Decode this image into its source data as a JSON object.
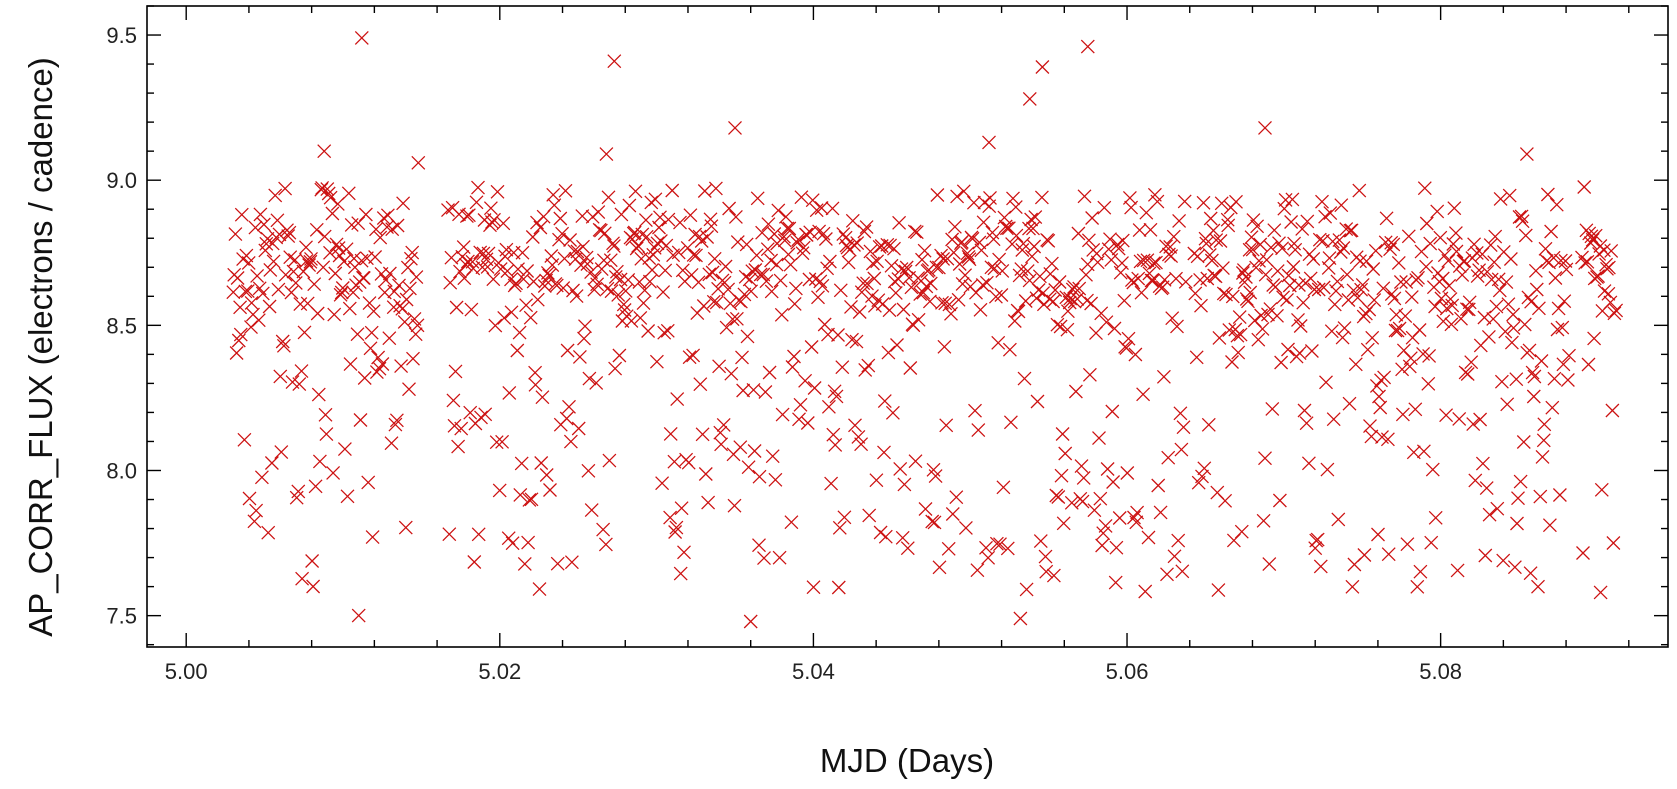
{
  "chart_data": {
    "type": "scatter",
    "title": "",
    "xlabel": "MJD (Days)",
    "ylabel": "AP_CORR_FLUX (electrons / cadence)",
    "xlim": [
      4.9975,
      5.0945
    ],
    "ylim": [
      7.392,
      9.6
    ],
    "x_major_ticks": [
      5.0,
      5.02,
      5.04,
      5.06,
      5.08
    ],
    "x_tick_labels": [
      "5.00",
      "5.02",
      "5.04",
      "5.06",
      "5.08"
    ],
    "y_major_ticks": [
      7.5,
      8.0,
      8.5,
      9.0,
      9.5
    ],
    "y_tick_labels": [
      "7.5",
      "8.0",
      "8.5",
      "9.0",
      "9.5"
    ],
    "grid": false,
    "legend": "none",
    "marker": "x",
    "marker_color": "#cc1111",
    "series": [
      {
        "segments": [
          {
            "x_start": 5.003,
            "x_end": 5.0148,
            "dx": 7e-05,
            "center": [
              8.66,
              8.7,
              8.64,
              8.68,
              8.75,
              8.7,
              8.62,
              8.66,
              8.72,
              8.8,
              8.74,
              8.66,
              8.6,
              8.65,
              8.7,
              8.74,
              8.7,
              8.66
            ],
            "core_spread": 0.24,
            "low_fraction": 0.28
          },
          {
            "x_start": 5.0167,
            "x_end": 5.0638,
            "dx": 7e-05,
            "center": [
              8.72,
              8.76,
              8.74,
              8.7,
              8.66,
              8.7,
              8.74,
              8.72,
              8.68,
              8.74,
              8.78,
              8.72,
              8.7,
              8.66,
              8.62,
              8.66,
              8.7,
              8.74,
              8.78,
              8.74,
              8.7,
              8.66,
              8.62,
              8.68,
              8.72,
              8.78,
              8.8,
              8.74,
              8.7,
              8.66,
              8.64,
              8.68,
              8.72,
              8.74,
              8.7,
              8.68
            ],
            "core_spread": 0.24,
            "low_fraction": 0.27
          },
          {
            "x_start": 5.0643,
            "x_end": 5.0882,
            "dx": 7e-05,
            "center": [
              8.68,
              8.72,
              8.66,
              8.62,
              8.68,
              8.72,
              8.7,
              8.66,
              8.62,
              8.58,
              8.64,
              8.7,
              8.66,
              8.62,
              8.66,
              8.7,
              8.66,
              8.6
            ],
            "core_spread": 0.24,
            "low_fraction": 0.27
          },
          {
            "x_start": 5.089,
            "x_end": 5.0912,
            "dx": 7e-05,
            "center": [
              8.8,
              8.7,
              8.62
            ],
            "core_spread": 0.22,
            "low_fraction": 0.25
          }
        ],
        "outliers": [
          {
            "x": 5.0112,
            "y": 9.49
          },
          {
            "x": 5.0273,
            "y": 9.41
          },
          {
            "x": 5.035,
            "y": 9.18
          },
          {
            "x": 5.0538,
            "y": 9.28
          },
          {
            "x": 5.0546,
            "y": 9.39
          },
          {
            "x": 5.0575,
            "y": 9.46
          },
          {
            "x": 5.0512,
            "y": 9.13
          },
          {
            "x": 5.0688,
            "y": 9.18
          },
          {
            "x": 5.0088,
            "y": 9.1
          },
          {
            "x": 5.0148,
            "y": 9.06
          },
          {
            "x": 5.0268,
            "y": 9.09
          },
          {
            "x": 5.0855,
            "y": 9.09
          },
          {
            "x": 5.011,
            "y": 7.5
          },
          {
            "x": 5.036,
            "y": 7.48
          },
          {
            "x": 5.0532,
            "y": 7.49
          },
          {
            "x": 5.0902,
            "y": 7.58
          }
        ]
      }
    ]
  }
}
